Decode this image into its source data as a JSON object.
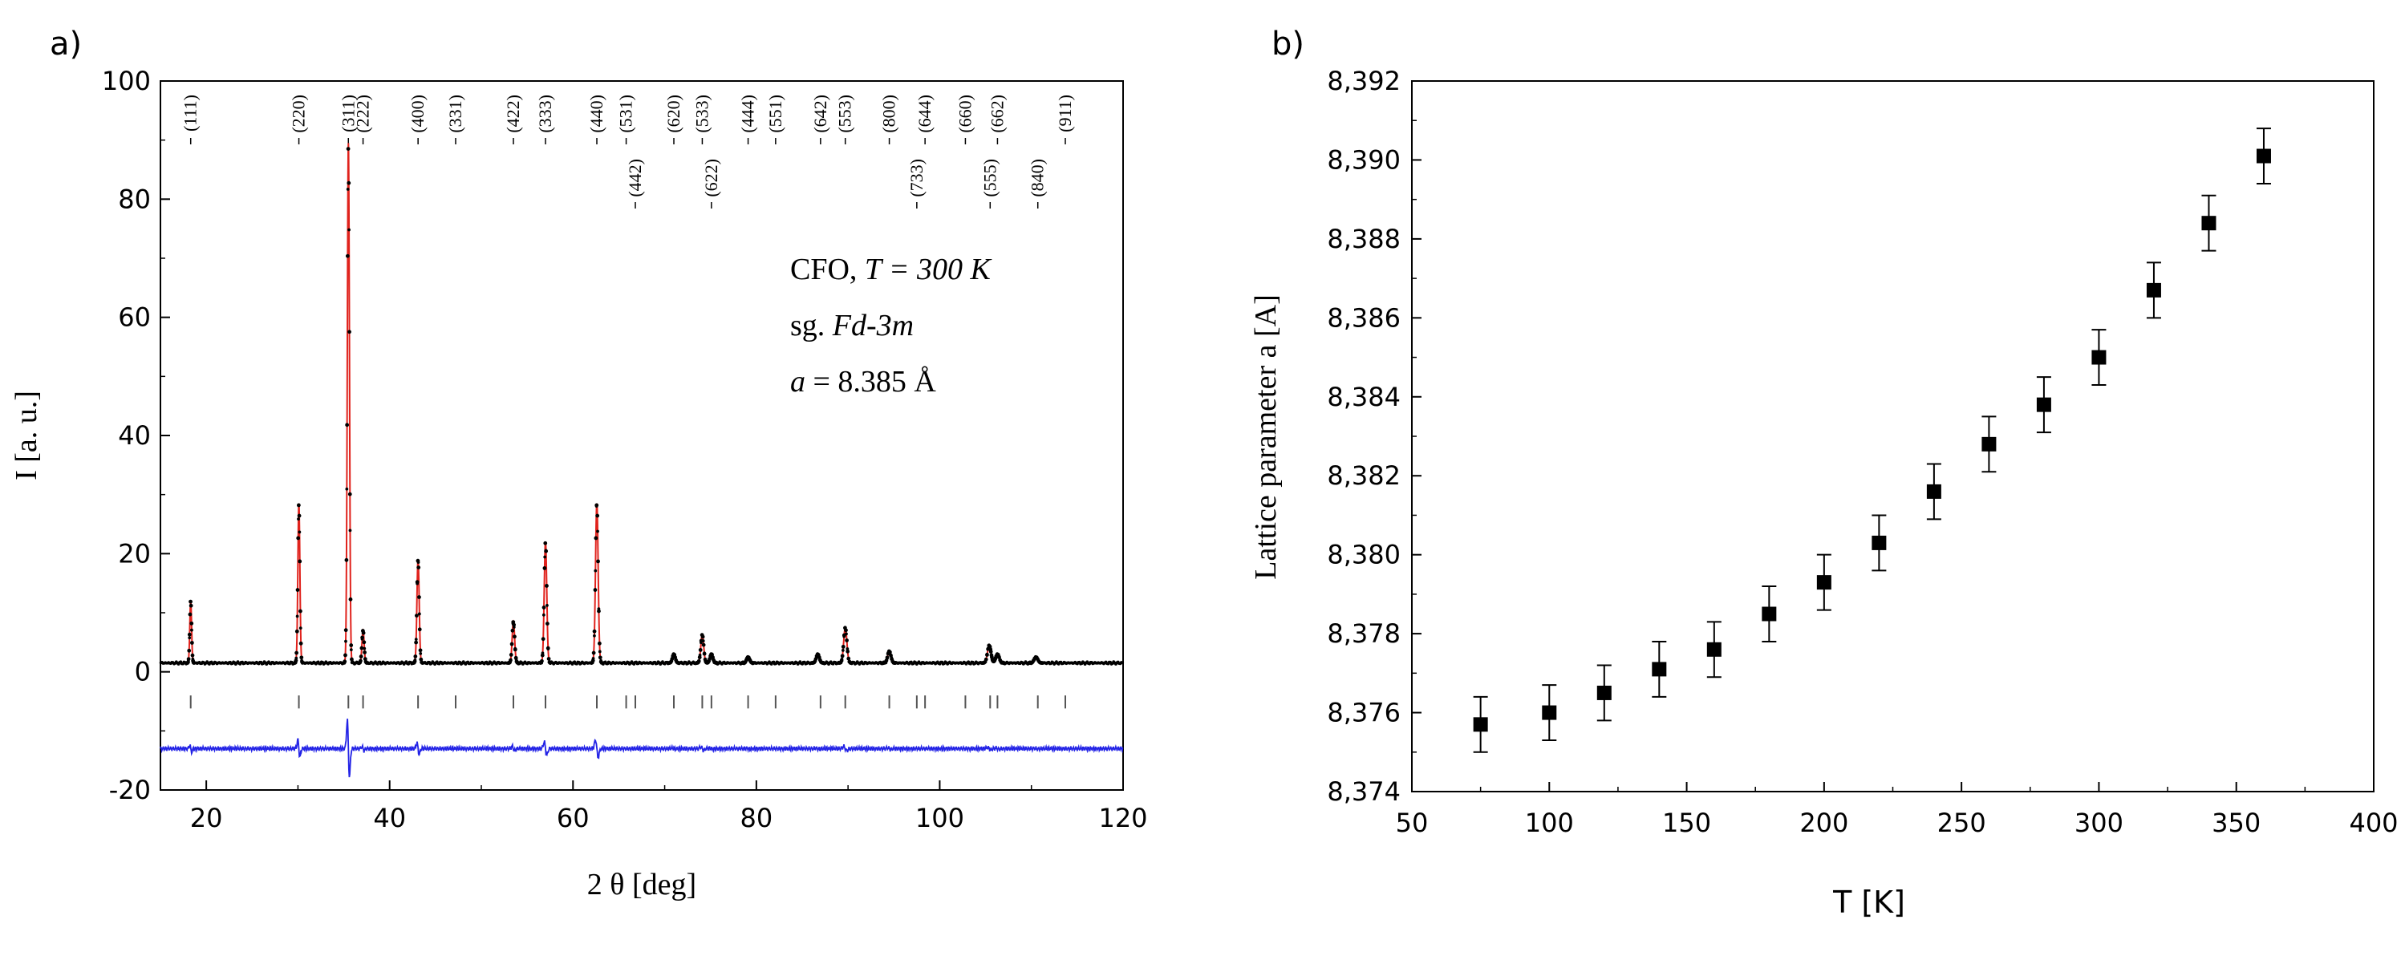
{
  "chart_data": [
    {
      "type": "line",
      "panel_label": "a)",
      "title": "",
      "xlabel": "2 θ [deg]",
      "ylabel": "I [a. u.]",
      "xlim": [
        15,
        120
      ],
      "ylim": [
        -20,
        100
      ],
      "xticks": [
        20,
        40,
        60,
        80,
        100,
        120
      ],
      "yticks": [
        -20,
        0,
        20,
        40,
        60,
        80,
        100
      ],
      "colors": {
        "observed": "#000000",
        "calculated": "#e0221c",
        "difference": "#2323e6",
        "bragg": "#555555"
      },
      "annotation_lines": [
        {
          "prefix": "CFO, ",
          "italic": "T = 300 K",
          "suffix": ""
        },
        {
          "prefix": "sg. ",
          "italic": "Fd-3m",
          "suffix": ""
        },
        {
          "prefix": "",
          "italic": "a",
          "suffix": " = 8.385 Å"
        }
      ],
      "background_level": 1.5,
      "difference_offset": -13,
      "peaks": [
        {
          "x": 18.3,
          "height": 10.5
        },
        {
          "x": 30.1,
          "height": 27.0
        },
        {
          "x": 35.5,
          "height": 88.0
        },
        {
          "x": 37.1,
          "height": 5.5
        },
        {
          "x": 43.1,
          "height": 17.5
        },
        {
          "x": 53.5,
          "height": 7.0
        },
        {
          "x": 57.0,
          "height": 20.5
        },
        {
          "x": 62.6,
          "height": 27.0
        },
        {
          "x": 71.0,
          "height": 1.5
        },
        {
          "x": 74.1,
          "height": 4.8
        },
        {
          "x": 75.1,
          "height": 1.5
        },
        {
          "x": 79.1,
          "height": 1.0
        },
        {
          "x": 86.7,
          "height": 1.5
        },
        {
          "x": 89.7,
          "height": 6.0
        },
        {
          "x": 94.5,
          "height": 2.0
        },
        {
          "x": 105.4,
          "height": 3.0
        },
        {
          "x": 106.3,
          "height": 1.5
        },
        {
          "x": 110.5,
          "height": 1.0
        }
      ],
      "bragg_positions": [
        18.3,
        30.1,
        35.5,
        37.1,
        43.1,
        47.2,
        53.5,
        57.0,
        62.6,
        65.8,
        66.8,
        71.0,
        74.1,
        75.1,
        79.1,
        82.1,
        87.0,
        89.7,
        94.5,
        97.5,
        98.4,
        102.8,
        105.5,
        106.3,
        110.7,
        113.7
      ],
      "hkl_labels": [
        {
          "x": 18.3,
          "label": "(111)",
          "row": 1
        },
        {
          "x": 30.1,
          "label": "(220)",
          "row": 1
        },
        {
          "x": 35.5,
          "label": "(311)",
          "row": 1
        },
        {
          "x": 37.1,
          "label": "(222)",
          "row": 1
        },
        {
          "x": 43.1,
          "label": "(400)",
          "row": 1
        },
        {
          "x": 47.2,
          "label": "(331)",
          "row": 1
        },
        {
          "x": 53.5,
          "label": "(422)",
          "row": 1
        },
        {
          "x": 57.0,
          "label": "(333)",
          "row": 1
        },
        {
          "x": 62.6,
          "label": "(440)",
          "row": 1
        },
        {
          "x": 65.8,
          "label": "(531)",
          "row": 1
        },
        {
          "x": 66.8,
          "label": "(442)",
          "row": 2
        },
        {
          "x": 71.0,
          "label": "(620)",
          "row": 1
        },
        {
          "x": 74.1,
          "label": "(533)",
          "row": 1
        },
        {
          "x": 75.1,
          "label": "(622)",
          "row": 2
        },
        {
          "x": 79.1,
          "label": "(444)",
          "row": 1
        },
        {
          "x": 82.1,
          "label": "(551)",
          "row": 1
        },
        {
          "x": 87.0,
          "label": "(642)",
          "row": 1
        },
        {
          "x": 89.7,
          "label": "(553)",
          "row": 1
        },
        {
          "x": 94.5,
          "label": "(800)",
          "row": 1
        },
        {
          "x": 97.5,
          "label": "(733)",
          "row": 2
        },
        {
          "x": 98.4,
          "label": "(644)",
          "row": 1
        },
        {
          "x": 102.8,
          "label": "(660)",
          "row": 1
        },
        {
          "x": 105.5,
          "label": "(555)",
          "row": 2
        },
        {
          "x": 106.3,
          "label": "(662)",
          "row": 1
        },
        {
          "x": 110.7,
          "label": "(840)",
          "row": 2
        },
        {
          "x": 113.7,
          "label": "(911)",
          "row": 1
        }
      ]
    },
    {
      "type": "scatter",
      "panel_label": "b)",
      "title": "",
      "xlabel": "T [K]",
      "ylabel": "Lattice parameter a [A]",
      "xlim": [
        50,
        400
      ],
      "ylim": [
        8.374,
        8.392
      ],
      "xticks": [
        50,
        100,
        150,
        200,
        250,
        300,
        350,
        400
      ],
      "yticks": [
        "8,374",
        "8,376",
        "8,378",
        "8,380",
        "8,382",
        "8,384",
        "8,386",
        "8,388",
        "8,390",
        "8,392"
      ],
      "ytick_values": [
        8.374,
        8.376,
        8.378,
        8.38,
        8.382,
        8.384,
        8.386,
        8.388,
        8.39,
        8.392
      ],
      "marker_color": "#000000",
      "series": [
        {
          "name": "Lattice parameter",
          "x": [
            75,
            100,
            120,
            140,
            160,
            180,
            200,
            220,
            240,
            260,
            280,
            300,
            320,
            340,
            360
          ],
          "y": [
            8.3757,
            8.376,
            8.3765,
            8.3771,
            8.3776,
            8.3785,
            8.3793,
            8.3803,
            8.3816,
            8.3828,
            8.3838,
            8.385,
            8.3867,
            8.3884,
            8.3901
          ],
          "yerr": [
            0.0007,
            0.0007,
            0.0007,
            0.0007,
            0.0007,
            0.0007,
            0.0007,
            0.0007,
            0.0007,
            0.0007,
            0.0007,
            0.0007,
            0.0007,
            0.0007,
            0.0007
          ]
        }
      ]
    }
  ]
}
